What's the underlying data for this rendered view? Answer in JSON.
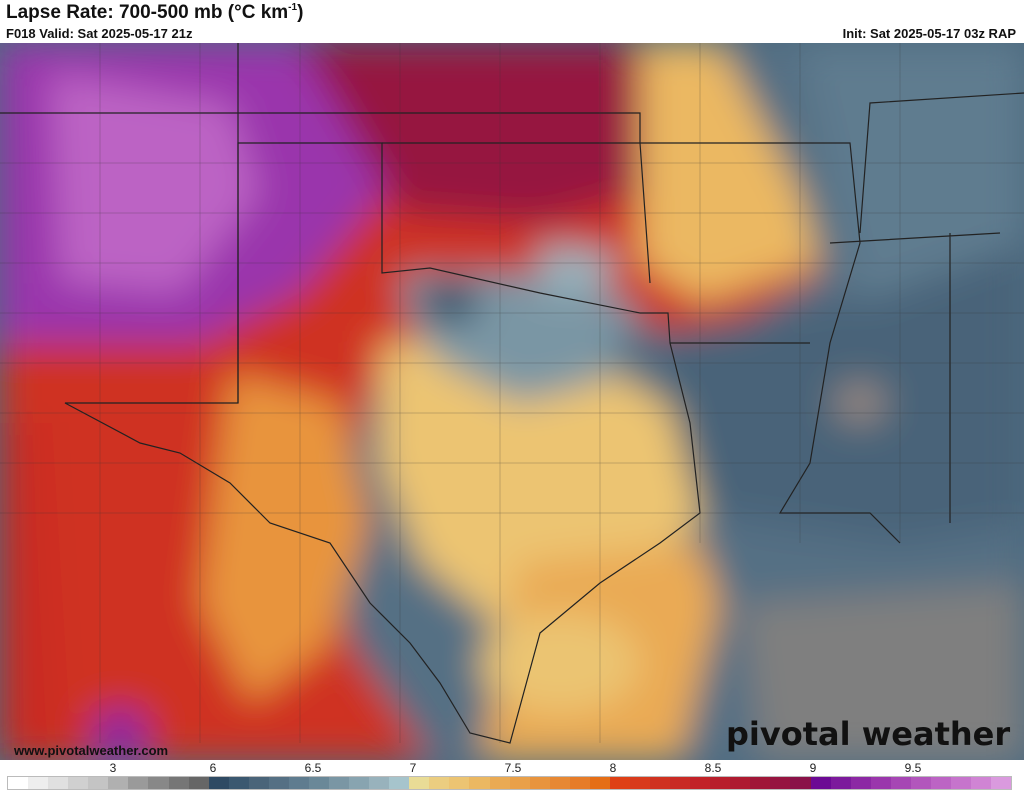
{
  "header": {
    "title": "Lapse Rate: 700-500 mb (°C km",
    "title_sup": "-1",
    "title_close": ")",
    "valid": "F018 Valid: Sat 2025-05-17 21z",
    "init": "Init: Sat 2025-05-17 03z RAP"
  },
  "footer": {
    "website": "www.pivotalweather.com",
    "logo": "pivotal weather"
  },
  "colorbar": {
    "labels": [
      "3",
      "6",
      "6.5",
      "7",
      "7.5",
      "8",
      "8.5",
      "9",
      "9.5"
    ],
    "colors": [
      "#ffffff",
      "#eeeeee",
      "#e0e0e0",
      "#d0d0d0",
      "#c4c4c4",
      "#b0b0b0",
      "#9a9a9a",
      "#888888",
      "#767676",
      "#666666",
      "#2f4a63",
      "#3b5870",
      "#4a6479",
      "#557084",
      "#5f7c8f",
      "#6a8898",
      "#7a96a4",
      "#88a4b0",
      "#98b2bc",
      "#a6c4cc",
      "#e9dc96",
      "#ebcd80",
      "#ecc472",
      "#ebb862",
      "#eaaa54",
      "#e9a049",
      "#e8943e",
      "#e78834",
      "#e67c29",
      "#e56e16",
      "#de4016",
      "#d83a1c",
      "#cf3220",
      "#c92a24",
      "#c22228",
      "#b81e2c",
      "#ae1a30",
      "#a01638",
      "#961440",
      "#8a1248",
      "#6c0a94",
      "#7c1a9c",
      "#8c28a4",
      "#9a36ac",
      "#a646b4",
      "#b256bc",
      "#bc64c4",
      "#c674cc",
      "#d084d4",
      "#da9ade"
    ]
  }
}
